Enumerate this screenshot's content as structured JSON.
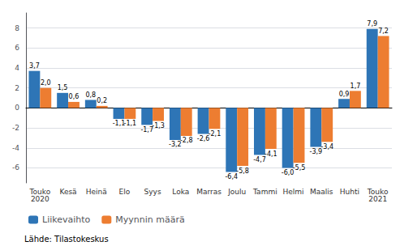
{
  "chart_data": {
    "type": "bar",
    "categories": [
      "Touko\n2020",
      "Kesä",
      "Heinä",
      "Elo",
      "Syys",
      "Loka",
      "Marras",
      "Joulu",
      "Tammi",
      "Helmi",
      "Maalis",
      "Huhti",
      "Touko\n2021"
    ],
    "series": [
      {
        "name": "Liikevaihto",
        "color": "#2e75b6",
        "values": [
          3.7,
          1.5,
          0.8,
          -1.1,
          -1.7,
          -3.2,
          -2.6,
          -6.4,
          -4.7,
          -6.0,
          -3.9,
          0.9,
          7.9
        ],
        "value_labels": [
          "3,7",
          "1,5",
          "0,8",
          "-1,1",
          "-1,7",
          "-3,2",
          "-2,6",
          "-6,4",
          "-4,7",
          "-6,0",
          "-3,9",
          "0,9",
          "7,9"
        ]
      },
      {
        "name": "Myynnin määrä",
        "color": "#ed7d31",
        "values": [
          2.0,
          0.6,
          0.2,
          -1.1,
          -1.3,
          -2.8,
          -2.1,
          -5.8,
          -4.1,
          -5.5,
          -3.4,
          1.7,
          7.2
        ],
        "value_labels": [
          "2,0",
          "0,6",
          "0,2",
          "-1,1",
          "-1,3",
          "-2,8",
          "-2,1",
          "-5,8",
          "-4,1",
          "-5,5",
          "-3,4",
          "1,7",
          "7,2"
        ]
      }
    ],
    "ylim": [
      -7.5,
      9.5
    ],
    "yticks": [
      -6,
      -4,
      -2,
      0,
      2,
      4,
      6,
      8
    ],
    "grid": true,
    "legend": "lower left",
    "data_labels": true,
    "annotations": [
      "Lähde: Tilastokeskus"
    ]
  }
}
